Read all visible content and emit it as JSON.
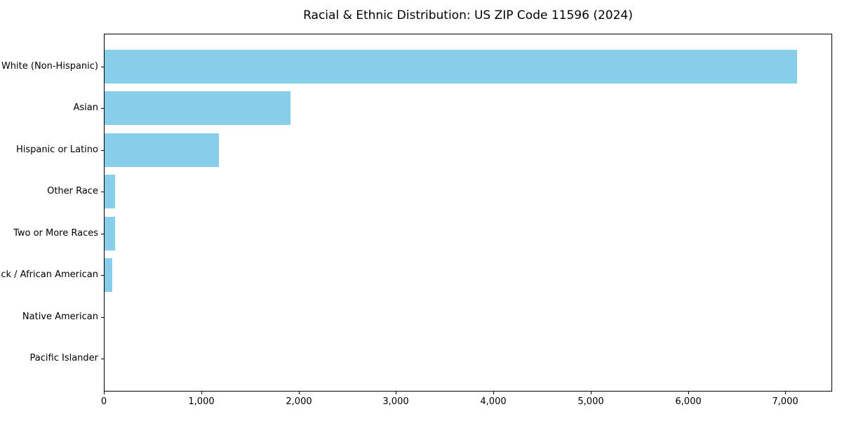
{
  "chart_data": {
    "type": "bar",
    "orientation": "horizontal",
    "title": "Racial & Ethnic Distribution: US ZIP Code 11596 (2024)",
    "categories": [
      "White (Non-Hispanic)",
      "Asian",
      "Hispanic or Latino",
      "Other Race",
      "Two or More Races",
      "Black / African American",
      "Native American",
      "Pacific Islander"
    ],
    "values": [
      7125,
      1910,
      1175,
      105,
      110,
      82,
      0,
      0
    ],
    "xlabel": "",
    "ylabel": "",
    "xlim": [
      0,
      7481
    ],
    "xticks": [
      0,
      1000,
      2000,
      3000,
      4000,
      5000,
      6000,
      7000
    ],
    "xtick_labels": [
      "0",
      "1,000",
      "2,000",
      "3,000",
      "4,000",
      "5,000",
      "6,000",
      "7,000"
    ],
    "grid": false,
    "legend": null,
    "colors": {
      "bar": "#87ceeb",
      "frame": "#000000",
      "text": "#000000",
      "background": "#ffffff"
    }
  }
}
